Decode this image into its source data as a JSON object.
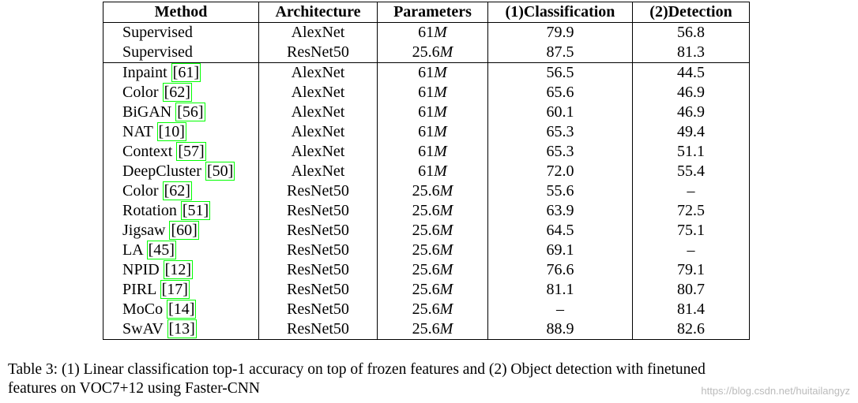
{
  "table": {
    "header": [
      "Method",
      "Architecture",
      "Parameters",
      "(1)Classification",
      "(2)Detection"
    ],
    "rows": [
      {
        "method": "Supervised",
        "cite": null,
        "arch": "AlexNet",
        "params": "61",
        "unit": "M",
        "cls": "79.9",
        "det": "56.8"
      },
      {
        "method": "Supervised",
        "cite": null,
        "arch": "ResNet50",
        "params": "25.6",
        "unit": "M",
        "cls": "87.5",
        "det": "81.3"
      },
      {
        "method": "Inpaint",
        "cite": "[61]",
        "arch": "AlexNet",
        "params": "61",
        "unit": "M",
        "cls": "56.5",
        "det": "44.5"
      },
      {
        "method": "Color",
        "cite": "[62]",
        "arch": "AlexNet",
        "params": "61",
        "unit": "M",
        "cls": "65.6",
        "det": "46.9"
      },
      {
        "method": "BiGAN",
        "cite": "[56]",
        "arch": "AlexNet",
        "params": "61",
        "unit": "M",
        "cls": "60.1",
        "det": "46.9"
      },
      {
        "method": "NAT",
        "cite": "[10]",
        "arch": "AlexNet",
        "params": "61",
        "unit": "M",
        "cls": "65.3",
        "det": "49.4"
      },
      {
        "method": "Context",
        "cite": "[57]",
        "arch": "AlexNet",
        "params": "61",
        "unit": "M",
        "cls": "65.3",
        "det": "51.1"
      },
      {
        "method": "DeepCluster",
        "cite": "[50]",
        "arch": "AlexNet",
        "params": "61",
        "unit": "M",
        "cls": "72.0",
        "det": "55.4"
      },
      {
        "method": "Color",
        "cite": "[62]",
        "arch": "ResNet50",
        "params": "25.6",
        "unit": "M",
        "cls": "55.6",
        "det": "–"
      },
      {
        "method": "Rotation",
        "cite": "[51]",
        "arch": "ResNet50",
        "params": "25.6",
        "unit": "M",
        "cls": "63.9",
        "det": "72.5"
      },
      {
        "method": "Jigsaw",
        "cite": "[60]",
        "arch": "ResNet50",
        "params": "25.6",
        "unit": "M",
        "cls": "64.5",
        "det": "75.1"
      },
      {
        "method": "LA",
        "cite": "[45]",
        "arch": "ResNet50",
        "params": "25.6",
        "unit": "M",
        "cls": "69.1",
        "det": "–"
      },
      {
        "method": "NPID",
        "cite": "[12]",
        "arch": "ResNet50",
        "params": "25.6",
        "unit": "M",
        "cls": "76.6",
        "det": "79.1"
      },
      {
        "method": "PIRL",
        "cite": "[17]",
        "arch": "ResNet50",
        "params": "25.6",
        "unit": "M",
        "cls": "81.1",
        "det": "80.7"
      },
      {
        "method": "MoCo",
        "cite": "[14]",
        "arch": "ResNet50",
        "params": "25.6",
        "unit": "M",
        "cls": "–",
        "det": "81.4"
      },
      {
        "method": "SwAV",
        "cite": "[13]",
        "arch": "ResNet50",
        "params": "25.6",
        "unit": "M",
        "cls": "88.9",
        "det": "82.6"
      }
    ]
  },
  "caption": [
    "Table 3: (1) Linear classification top-1 accuracy on top of frozen features and (2) Object detection with finetuned",
    "features on VOC7+12 using Faster-CNN"
  ],
  "watermark": "https://blog.csdn.net/huitailangyz"
}
